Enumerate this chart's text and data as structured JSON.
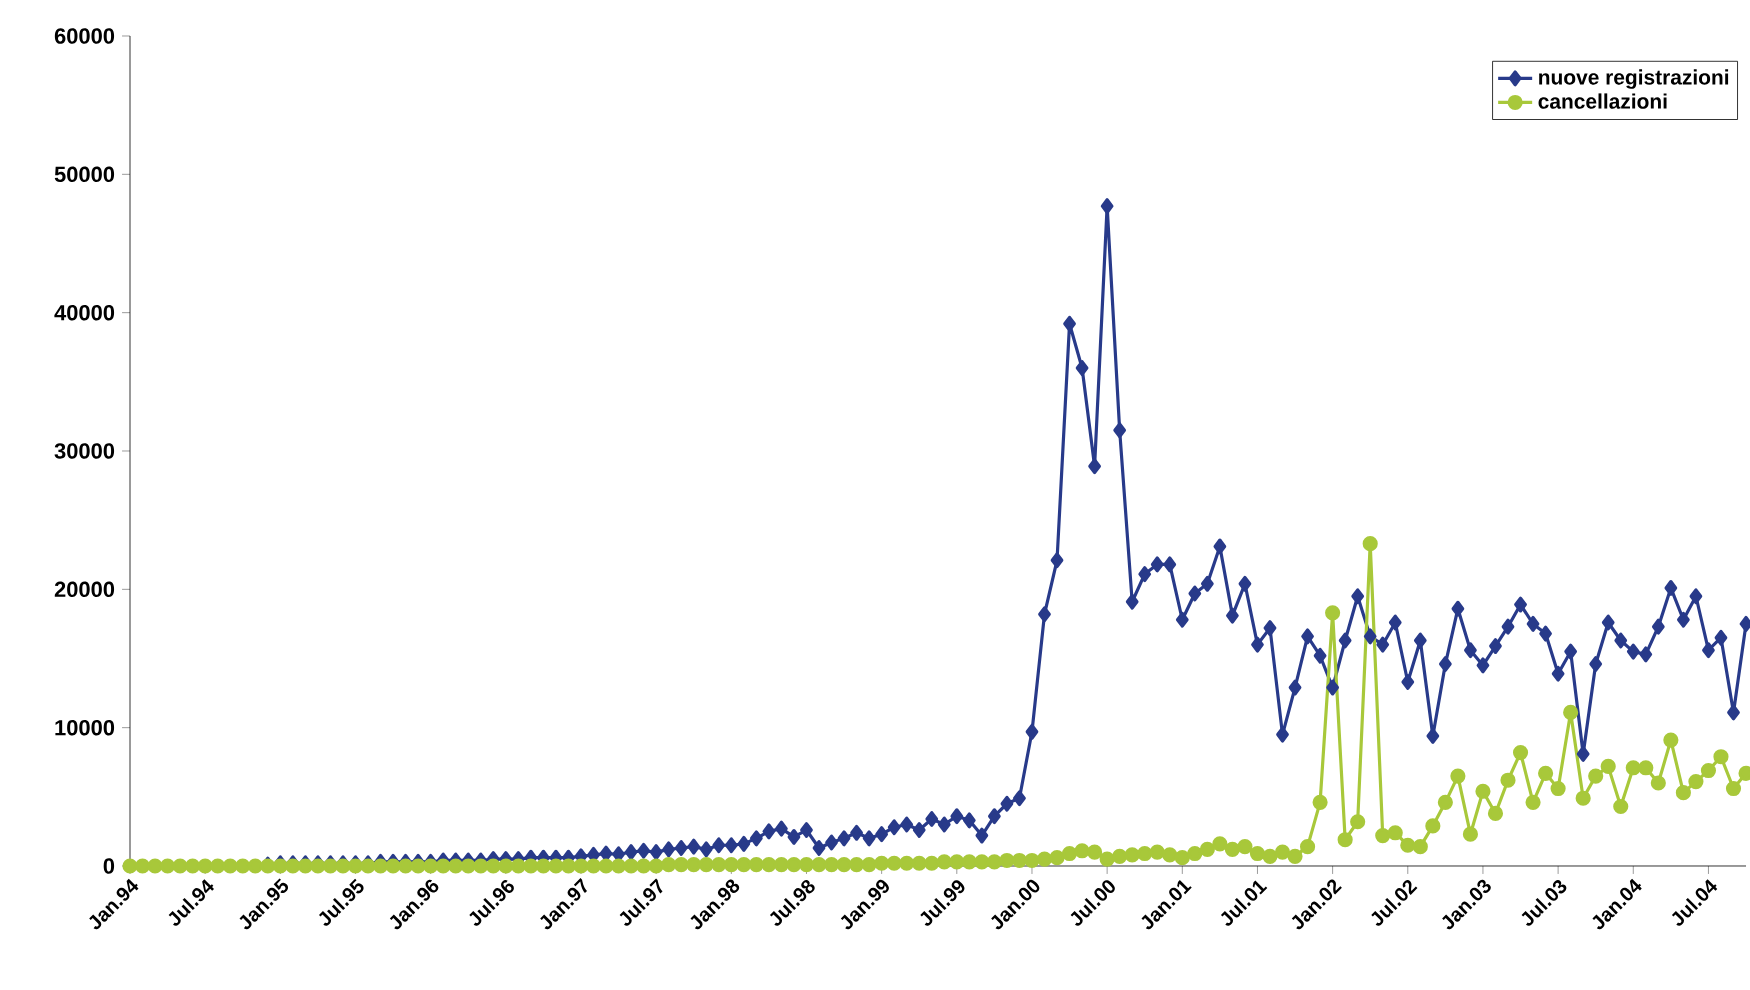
{
  "chart_data": {
    "type": "line",
    "categories": [
      "Jan.94",
      null,
      null,
      null,
      null,
      null,
      "Jul.94",
      null,
      null,
      null,
      null,
      null,
      "Jan.95",
      null,
      null,
      null,
      null,
      null,
      "Jul.95",
      null,
      null,
      null,
      null,
      null,
      "Jan.96",
      null,
      null,
      null,
      null,
      null,
      "Jul.96",
      null,
      null,
      null,
      null,
      null,
      "Jan.97",
      null,
      null,
      null,
      null,
      null,
      "Jul.97",
      null,
      null,
      null,
      null,
      null,
      "Jan.98",
      null,
      null,
      null,
      null,
      null,
      "Jul.98",
      null,
      null,
      null,
      null,
      null,
      "Jan.99",
      null,
      null,
      null,
      null,
      null,
      "Jul.99",
      null,
      null,
      null,
      null,
      null,
      "Jan.00",
      null,
      null,
      null,
      null,
      null,
      "Jul.00",
      null,
      null,
      null,
      null,
      null,
      "Jan.01",
      null,
      null,
      null,
      null,
      null,
      "Jul.01",
      null,
      null,
      null,
      null,
      null,
      "Jan.02",
      null,
      null,
      null,
      null,
      null,
      "Jul.02",
      null,
      null,
      null,
      null,
      null,
      "Jan.03",
      null,
      null,
      null,
      null,
      null,
      "Jul.03",
      null,
      null,
      null,
      null,
      null,
      "Jan.04",
      null,
      null,
      null,
      null,
      null,
      "Jul.04",
      null,
      null,
      null
    ],
    "series": [
      {
        "name": "nuove registrazioni",
        "color": "#283a8a",
        "marker": "diamond",
        "values": [
          null,
          null,
          null,
          null,
          null,
          null,
          null,
          null,
          null,
          null,
          null,
          100,
          200,
          200,
          200,
          200,
          200,
          200,
          200,
          200,
          300,
          300,
          300,
          300,
          300,
          400,
          400,
          400,
          400,
          500,
          500,
          500,
          600,
          600,
          600,
          600,
          700,
          800,
          900,
          850,
          1000,
          1100,
          1000,
          1200,
          1300,
          1400,
          1200,
          1500,
          1500,
          1600,
          2000,
          2500,
          2700,
          2100,
          2600,
          1300,
          1700,
          2000,
          2400,
          2000,
          2300,
          2800,
          3000,
          2600,
          3400,
          3000,
          3600,
          3300,
          2200,
          3600,
          4500,
          4900,
          9700,
          18200,
          22100,
          39200,
          36000,
          28900,
          47700,
          31500,
          19100,
          21100,
          21800,
          21800,
          17800,
          19700,
          20400,
          23100,
          18100,
          20400,
          16000,
          17200,
          9500,
          12900,
          16600,
          15200,
          12900,
          16300,
          19500,
          16600,
          16000,
          17600,
          13300,
          16300,
          9400,
          14600,
          18600,
          15600,
          14500,
          15900,
          17300,
          18900,
          17500,
          16800,
          13900,
          15500,
          8100,
          14600,
          17600,
          16300,
          15500,
          15300,
          17300,
          20100,
          17800,
          19500,
          15600,
          16500,
          11100,
          17500
        ]
      },
      {
        "name": "cancellazioni",
        "color": "#a8c83a",
        "marker": "circle",
        "values": [
          0,
          0,
          0,
          0,
          0,
          0,
          0,
          0,
          0,
          0,
          0,
          0,
          0,
          0,
          0,
          0,
          0,
          0,
          0,
          0,
          0,
          0,
          0,
          0,
          0,
          0,
          0,
          0,
          0,
          0,
          0,
          0,
          0,
          0,
          0,
          0,
          0,
          0,
          0,
          0,
          0,
          0,
          0,
          100,
          100,
          100,
          100,
          100,
          100,
          100,
          100,
          100,
          100,
          100,
          100,
          100,
          100,
          100,
          100,
          100,
          200,
          200,
          200,
          200,
          200,
          300,
          300,
          300,
          300,
          300,
          400,
          400,
          400,
          500,
          600,
          900,
          1100,
          1000,
          500,
          700,
          800,
          900,
          1000,
          800,
          600,
          900,
          1200,
          1600,
          1200,
          1400,
          900,
          700,
          1000,
          700,
          1400,
          4600,
          18300,
          1900,
          3200,
          23300,
          2200,
          2400,
          1500,
          1400,
          2900,
          4600,
          6500,
          2300,
          5400,
          3800,
          6200,
          8200,
          4600,
          6700,
          5600,
          11100,
          4900,
          6500,
          7200,
          4300,
          7100,
          7100,
          6000,
          9100,
          5300,
          6100,
          6900,
          7900,
          5600,
          6700
        ]
      }
    ],
    "ylim": [
      0,
      60000
    ],
    "yticks": [
      0,
      10000,
      20000,
      30000,
      40000,
      50000,
      60000
    ],
    "legend": "top right",
    "line_style": "solid"
  }
}
